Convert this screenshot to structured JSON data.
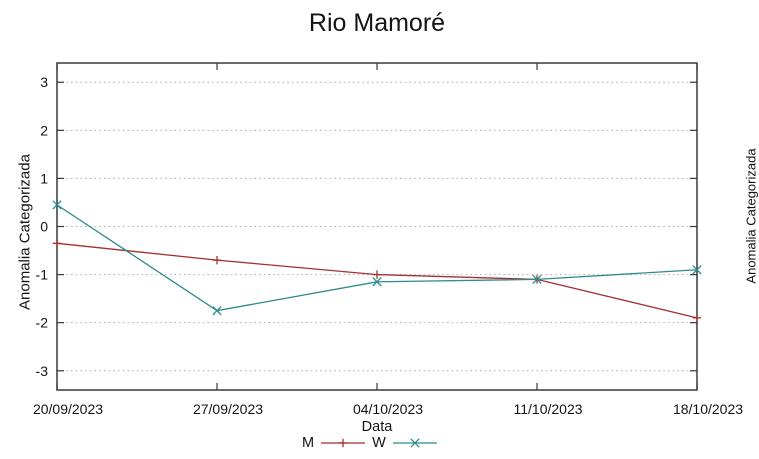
{
  "chart_data": {
    "type": "line",
    "title": "Rio Mamoré",
    "xlabel": "Data",
    "ylabel": "Anomalia Categorizada",
    "categories": [
      "20/09/2023",
      "27/09/2023",
      "04/10/2023",
      "11/10/2023",
      "18/10/2023"
    ],
    "series": [
      {
        "name": "M",
        "color": "#a42f2f",
        "marker": "plus",
        "values": [
          -0.35,
          -0.7,
          -1.0,
          -1.1,
          -1.9
        ]
      },
      {
        "name": "W",
        "color": "#2f8b8b",
        "marker": "cross",
        "values": [
          0.45,
          -1.75,
          -1.15,
          -1.1,
          -0.9
        ]
      }
    ],
    "yticks": [
      3,
      2,
      1,
      0,
      -1,
      -2,
      -3
    ],
    "ylim": [
      -3.4,
      3.4
    ],
    "grid": "horizontal-dotted",
    "legend_position": "bottom-center"
  },
  "adjacent_chart": {
    "ylabel": "Anomalia Categorizada"
  },
  "colors": {
    "axis": "#383838",
    "grid": "#a8a8a8",
    "text": "#141414",
    "series_m": "#a42f2f",
    "series_w": "#2f8b8b"
  }
}
